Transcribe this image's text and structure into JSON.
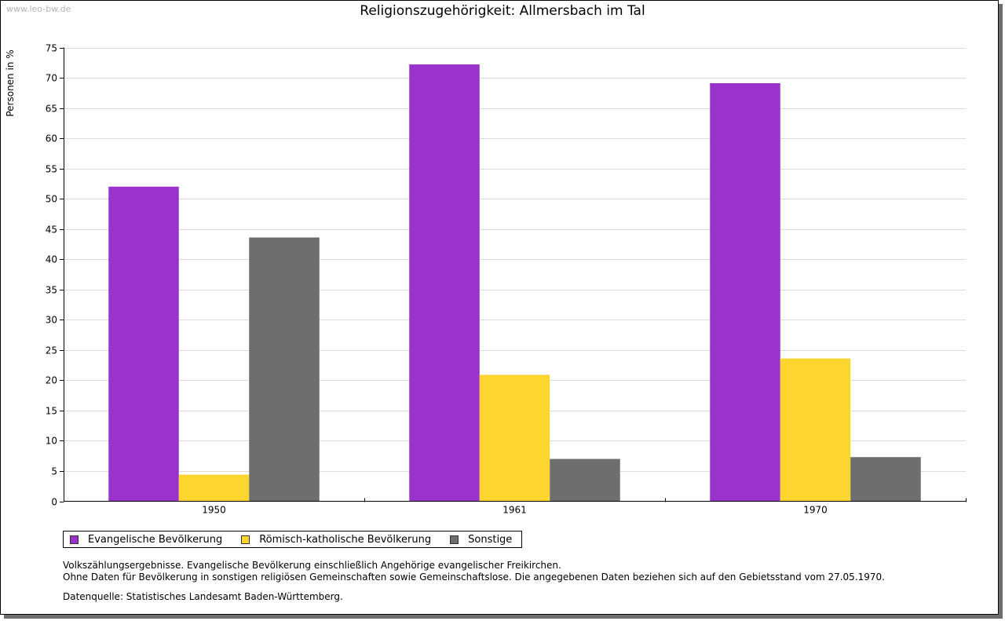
{
  "watermark": "www.leo-bw.de",
  "chart_data": {
    "type": "bar",
    "title": "Religionszugehörigkeit: Allmersbach im Tal",
    "xlabel": "",
    "ylabel": "Personen in %",
    "ylim": [
      0,
      75
    ],
    "yticks": [
      0,
      5,
      10,
      15,
      20,
      25,
      30,
      35,
      40,
      45,
      50,
      55,
      60,
      65,
      70,
      75
    ],
    "categories": [
      "1950",
      "1961",
      "1970"
    ],
    "grid": true,
    "legend_position": "bottom-left",
    "series": [
      {
        "name": "Evangelische Bevölkerung",
        "color": "#9933cc",
        "values": [
          52.0,
          72.2,
          69.1
        ]
      },
      {
        "name": "Römisch-katholische Bevölkerung",
        "color": "#fcd52e",
        "values": [
          4.4,
          20.9,
          23.6
        ]
      },
      {
        "name": "Sonstige",
        "color": "#6e6e6e",
        "values": [
          43.6,
          7.0,
          7.3
        ]
      }
    ]
  },
  "notes": {
    "line1": "Volkszählungsergebnisse. Evangelische Bevölkerung einschließlich Angehörige evangelischer Freikirchen.",
    "line2": "Ohne Daten für Bevölkerung in sonstigen religiösen Gemeinschaften sowie Gemeinschaftslose. Die angegebenen Daten beziehen sich auf den Gebietsstand vom 27.05.1970.",
    "source": "Datenquelle: Statistisches Landesamt Baden-Württemberg."
  }
}
